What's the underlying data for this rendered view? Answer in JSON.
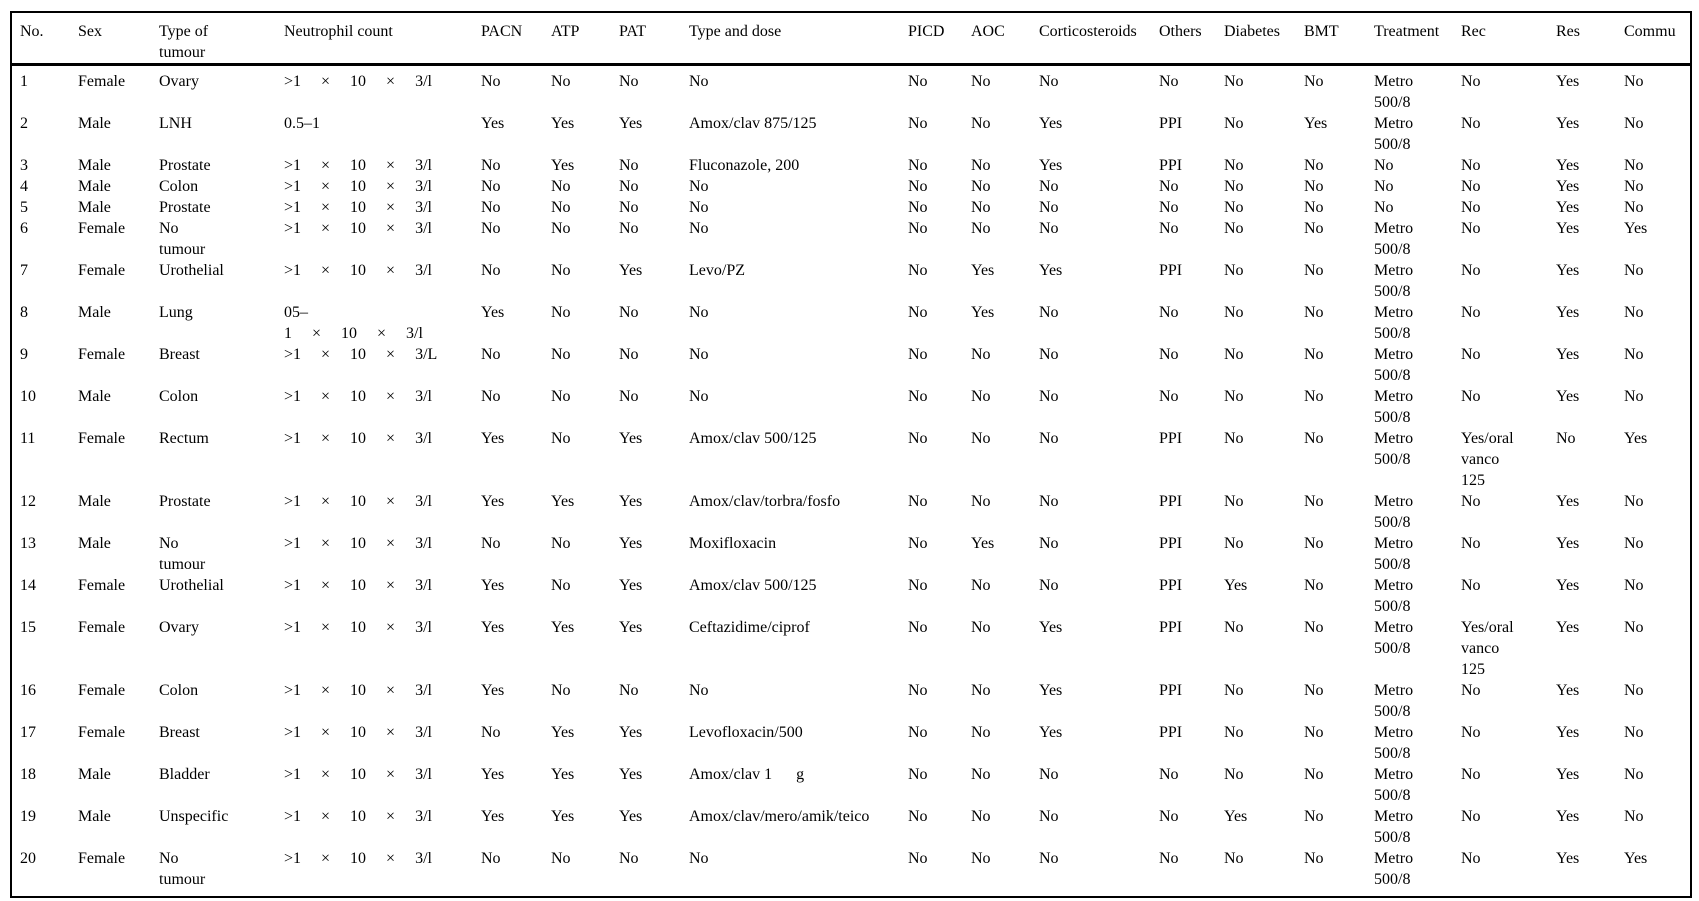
{
  "colors": {
    "text": "#000000",
    "border": "#000000",
    "background": "#ffffff"
  },
  "table": {
    "columns": [
      {
        "key": "no",
        "label": "No."
      },
      {
        "key": "sex",
        "label": "Sex"
      },
      {
        "key": "tumour",
        "label": "Type of\ntumour"
      },
      {
        "key": "neutrophil",
        "label": "Neutrophil count"
      },
      {
        "key": "pacn",
        "label": "PACN"
      },
      {
        "key": "atp",
        "label": "ATP"
      },
      {
        "key": "pat",
        "label": "PAT"
      },
      {
        "key": "type_dose",
        "label": "Type and dose"
      },
      {
        "key": "picd",
        "label": "PICD"
      },
      {
        "key": "aoc",
        "label": "AOC"
      },
      {
        "key": "cortico",
        "label": "Corticosteroids"
      },
      {
        "key": "others",
        "label": "Others"
      },
      {
        "key": "diabetes",
        "label": "Diabetes"
      },
      {
        "key": "bmt",
        "label": "BMT"
      },
      {
        "key": "treatment",
        "label": "Treatment"
      },
      {
        "key": "rec",
        "label": "Rec"
      },
      {
        "key": "res",
        "label": "Res"
      },
      {
        "key": "commu",
        "label": "Commu"
      }
    ],
    "rows": [
      {
        "no": "1",
        "sex": "Female",
        "tumour": "Ovary",
        "neutrophil": ">1 × 10 × 3/l",
        "pacn": "No",
        "atp": "No",
        "pat": "No",
        "type_dose": "No",
        "picd": "No",
        "aoc": "No",
        "cortico": "No",
        "others": "No",
        "diabetes": "No",
        "bmt": "No",
        "treatment": "Metro\n500/8",
        "rec": "No",
        "res": "Yes",
        "commu": "No"
      },
      {
        "no": "2",
        "sex": "Male",
        "tumour": "LNH",
        "neutrophil": "0.5–1",
        "pacn": "Yes",
        "atp": "Yes",
        "pat": "Yes",
        "type_dose": "Amox/clav 875/125",
        "picd": "No",
        "aoc": "No",
        "cortico": "Yes",
        "others": "PPI",
        "diabetes": "No",
        "bmt": "Yes",
        "treatment": "Metro\n500/8",
        "rec": "No",
        "res": "Yes",
        "commu": "No"
      },
      {
        "no": "3",
        "sex": "Male",
        "tumour": "Prostate",
        "neutrophil": ">1 × 10 × 3/l",
        "pacn": "No",
        "atp": "Yes",
        "pat": "No",
        "type_dose": "Fluconazole, 200",
        "picd": "No",
        "aoc": "No",
        "cortico": "Yes",
        "others": "PPI",
        "diabetes": "No",
        "bmt": "No",
        "treatment": "No",
        "rec": "No",
        "res": "Yes",
        "commu": "No"
      },
      {
        "no": "4",
        "sex": "Male",
        "tumour": "Colon",
        "neutrophil": ">1 × 10 × 3/l",
        "pacn": "No",
        "atp": "No",
        "pat": "No",
        "type_dose": "No",
        "picd": "No",
        "aoc": "No",
        "cortico": "No",
        "others": "No",
        "diabetes": "No",
        "bmt": "No",
        "treatment": "No",
        "rec": "No",
        "res": "Yes",
        "commu": "No"
      },
      {
        "no": "5",
        "sex": "Male",
        "tumour": "Prostate",
        "neutrophil": ">1 × 10 × 3/l",
        "pacn": "No",
        "atp": "No",
        "pat": "No",
        "type_dose": "No",
        "picd": "No",
        "aoc": "No",
        "cortico": "No",
        "others": "No",
        "diabetes": "No",
        "bmt": "No",
        "treatment": "No",
        "rec": "No",
        "res": "Yes",
        "commu": "No"
      },
      {
        "no": "6",
        "sex": "Female",
        "tumour": "No\ntumour",
        "neutrophil": ">1 × 10 × 3/l",
        "pacn": "No",
        "atp": "No",
        "pat": "No",
        "type_dose": "No",
        "picd": "No",
        "aoc": "No",
        "cortico": "No",
        "others": "No",
        "diabetes": "No",
        "bmt": "No",
        "treatment": "Metro\n500/8",
        "rec": "No",
        "res": "Yes",
        "commu": "Yes"
      },
      {
        "no": "7",
        "sex": "Female",
        "tumour": "Urothelial",
        "neutrophil": ">1 × 10 × 3/l",
        "pacn": "No",
        "atp": "No",
        "pat": "Yes",
        "type_dose": "Levo/PZ",
        "picd": "No",
        "aoc": "Yes",
        "cortico": "Yes",
        "others": "PPI",
        "diabetes": "No",
        "bmt": "No",
        "treatment": "Metro\n500/8",
        "rec": "No",
        "res": "Yes",
        "commu": "No"
      },
      {
        "no": "8",
        "sex": "Male",
        "tumour": "Lung",
        "neutrophil": "05–\n1 × 10 × 3/l",
        "pacn": "Yes",
        "atp": "No",
        "pat": "No",
        "type_dose": "No",
        "picd": "No",
        "aoc": "Yes",
        "cortico": "No",
        "others": "No",
        "diabetes": "No",
        "bmt": "No",
        "treatment": "Metro\n500/8",
        "rec": "No",
        "res": "Yes",
        "commu": "No"
      },
      {
        "no": "9",
        "sex": "Female",
        "tumour": "Breast",
        "neutrophil": ">1 × 10 × 3/L",
        "pacn": "No",
        "atp": "No",
        "pat": "No",
        "type_dose": "No",
        "picd": "No",
        "aoc": "No",
        "cortico": "No",
        "others": "No",
        "diabetes": "No",
        "bmt": "No",
        "treatment": "Metro\n500/8",
        "rec": "No",
        "res": "Yes",
        "commu": "No"
      },
      {
        "no": "10",
        "sex": "Male",
        "tumour": "Colon",
        "neutrophil": ">1 × 10 × 3/l",
        "pacn": "No",
        "atp": "No",
        "pat": "No",
        "type_dose": "No",
        "picd": "No",
        "aoc": "No",
        "cortico": "No",
        "others": "No",
        "diabetes": "No",
        "bmt": "No",
        "treatment": "Metro\n500/8",
        "rec": "No",
        "res": "Yes",
        "commu": "No"
      },
      {
        "no": "11",
        "sex": "Female",
        "tumour": "Rectum",
        "neutrophil": ">1 × 10 × 3/l",
        "pacn": "Yes",
        "atp": "No",
        "pat": "Yes",
        "type_dose": "Amox/clav 500/125",
        "picd": "No",
        "aoc": "No",
        "cortico": "No",
        "others": "PPI",
        "diabetes": "No",
        "bmt": "No",
        "treatment": "Metro\n500/8",
        "rec": "Yes/oral\nvanco\n125",
        "res": "No",
        "commu": "Yes"
      },
      {
        "no": "12",
        "sex": "Male",
        "tumour": "Prostate",
        "neutrophil": ">1 × 10 × 3/l",
        "pacn": "Yes",
        "atp": "Yes",
        "pat": "Yes",
        "type_dose": "Amox/clav/torbra/fosfo",
        "picd": "No",
        "aoc": "No",
        "cortico": "No",
        "others": "PPI",
        "diabetes": "No",
        "bmt": "No",
        "treatment": "Metro\n500/8",
        "rec": "No",
        "res": "Yes",
        "commu": "No"
      },
      {
        "no": "13",
        "sex": "Male",
        "tumour": "No\ntumour",
        "neutrophil": ">1 × 10 × 3/l",
        "pacn": "No",
        "atp": "No",
        "pat": "Yes",
        "type_dose": "Moxifloxacin",
        "picd": "No",
        "aoc": "Yes",
        "cortico": "No",
        "others": "PPI",
        "diabetes": "No",
        "bmt": "No",
        "treatment": "Metro\n500/8",
        "rec": "No",
        "res": "Yes",
        "commu": "No"
      },
      {
        "no": "14",
        "sex": "Female",
        "tumour": "Urothelial",
        "neutrophil": ">1 × 10 × 3/l",
        "pacn": "Yes",
        "atp": "No",
        "pat": "Yes",
        "type_dose": "Amox/clav 500/125",
        "picd": "No",
        "aoc": "No",
        "cortico": "No",
        "others": "PPI",
        "diabetes": "Yes",
        "bmt": "No",
        "treatment": "Metro\n500/8",
        "rec": "No",
        "res": "Yes",
        "commu": "No"
      },
      {
        "no": "15",
        "sex": "Female",
        "tumour": "Ovary",
        "neutrophil": ">1 × 10 × 3/l",
        "pacn": "Yes",
        "atp": "Yes",
        "pat": "Yes",
        "type_dose": "Ceftazidime/ciprof",
        "picd": "No",
        "aoc": "No",
        "cortico": "Yes",
        "others": "PPI",
        "diabetes": "No",
        "bmt": "No",
        "treatment": "Metro\n500/8",
        "rec": "Yes/oral\nvanco\n125",
        "res": "Yes",
        "commu": "No"
      },
      {
        "no": "16",
        "sex": "Female",
        "tumour": "Colon",
        "neutrophil": ">1 × 10 × 3/l",
        "pacn": "Yes",
        "atp": "No",
        "pat": "No",
        "type_dose": "No",
        "picd": "No",
        "aoc": "No",
        "cortico": "Yes",
        "others": "PPI",
        "diabetes": "No",
        "bmt": "No",
        "treatment": "Metro\n500/8",
        "rec": "No",
        "res": "Yes",
        "commu": "No"
      },
      {
        "no": "17",
        "sex": "Female",
        "tumour": "Breast",
        "neutrophil": ">1 × 10 × 3/l",
        "pacn": "No",
        "atp": "Yes",
        "pat": "Yes",
        "type_dose": "Levofloxacin/500",
        "picd": "No",
        "aoc": "No",
        "cortico": "Yes",
        "others": "PPI",
        "diabetes": "No",
        "bmt": "No",
        "treatment": "Metro\n500/8",
        "rec": "No",
        "res": "Yes",
        "commu": "No"
      },
      {
        "no": "18",
        "sex": "Male",
        "tumour": "Bladder",
        "neutrophil": ">1 × 10 × 3/l",
        "pacn": "Yes",
        "atp": "Yes",
        "pat": "Yes",
        "type_dose": "Amox/clav 1      g",
        "picd": "No",
        "aoc": "No",
        "cortico": "No",
        "others": "No",
        "diabetes": "No",
        "bmt": "No",
        "treatment": "Metro\n500/8",
        "rec": "No",
        "res": "Yes",
        "commu": "No"
      },
      {
        "no": "19",
        "sex": "Male",
        "tumour": "Unspecific",
        "neutrophil": ">1 × 10 × 3/l",
        "pacn": "Yes",
        "atp": "Yes",
        "pat": "Yes",
        "type_dose": "Amox/clav/mero/amik/teico",
        "picd": "No",
        "aoc": "No",
        "cortico": "No",
        "others": "No",
        "diabetes": "Yes",
        "bmt": "No",
        "treatment": "Metro\n500/8",
        "rec": "No",
        "res": "Yes",
        "commu": "No"
      },
      {
        "no": "20",
        "sex": "Female",
        "tumour": "No\ntumour",
        "neutrophil": ">1 × 10 × 3/l",
        "pacn": "No",
        "atp": "No",
        "pat": "No",
        "type_dose": "No",
        "picd": "No",
        "aoc": "No",
        "cortico": "No",
        "others": "No",
        "diabetes": "No",
        "bmt": "No",
        "treatment": "Metro\n500/8",
        "rec": "No",
        "res": "Yes",
        "commu": "Yes"
      }
    ]
  }
}
